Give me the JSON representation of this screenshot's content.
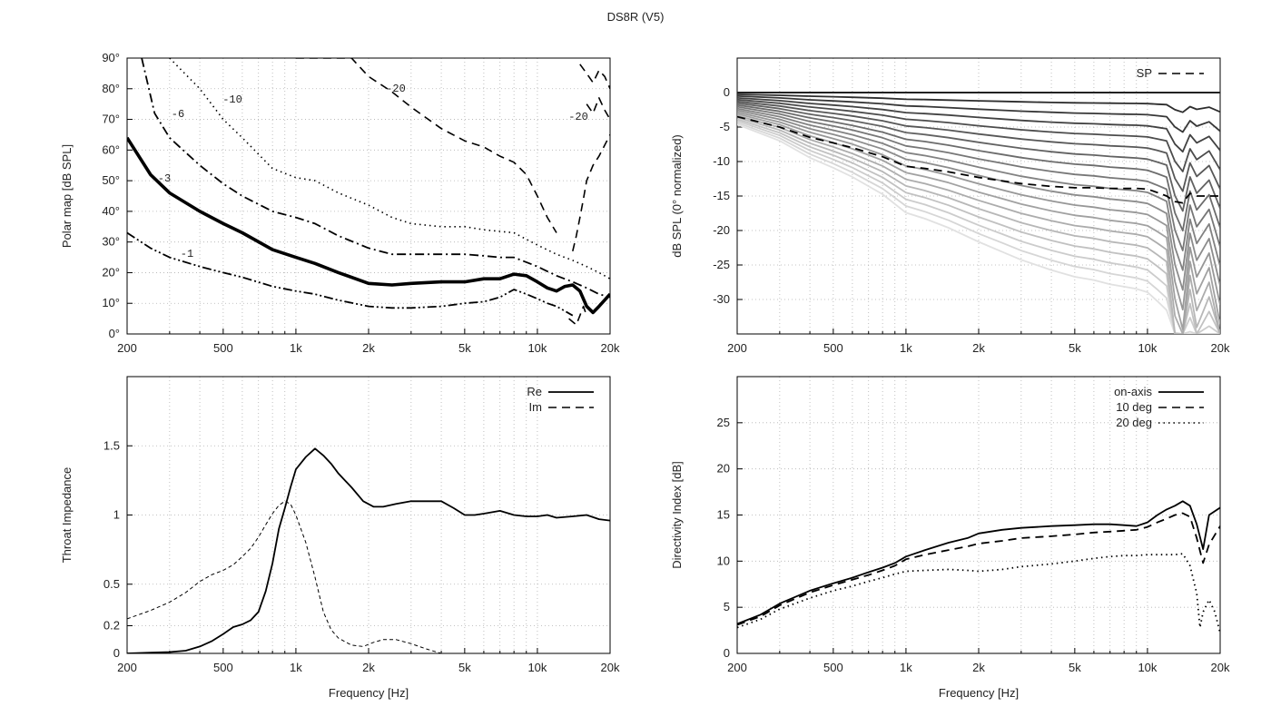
{
  "figure_title": "DS8R (V5)",
  "chart_data": [
    {
      "id": "polar",
      "type": "line",
      "title": "",
      "xlabel": "",
      "ylabel": "Polar map [dB SPL]",
      "xscale": "log",
      "xlim": [
        200,
        20000
      ],
      "ylim": [
        0,
        90
      ],
      "xticks": [
        [
          200,
          "200"
        ],
        [
          500,
          "500"
        ],
        [
          1000,
          "1k"
        ],
        [
          2000,
          "2k"
        ],
        [
          5000,
          "5k"
        ],
        [
          10000,
          "10k"
        ],
        [
          20000,
          "20k"
        ]
      ],
      "yticks": [
        [
          0,
          "0°"
        ],
        [
          10,
          "10°"
        ],
        [
          20,
          "20°"
        ],
        [
          30,
          "30°"
        ],
        [
          40,
          "40°"
        ],
        [
          50,
          "50°"
        ],
        [
          60,
          "60°"
        ],
        [
          70,
          "70°"
        ],
        [
          80,
          "80°"
        ],
        [
          90,
          "90°"
        ]
      ],
      "grid": true,
      "series": [
        {
          "name": "-1",
          "style": "dashdotdot",
          "x": [
            200,
            250,
            300,
            400,
            500,
            600,
            800,
            1000,
            1200,
            1500,
            2000,
            2500,
            3000,
            4000,
            5000,
            6000,
            7000,
            8000,
            9000,
            10000,
            11000,
            12000,
            13000,
            14000
          ],
          "y": [
            33,
            28,
            25,
            22,
            20,
            18.5,
            15.5,
            14,
            13,
            11,
            9,
            8.5,
            8.5,
            9,
            10,
            10.5,
            12,
            14.5,
            13,
            11.5,
            10,
            9,
            7.5,
            6
          ]
        },
        {
          "name": "-3",
          "style": "thick",
          "x": [
            200,
            250,
            300,
            400,
            500,
            600,
            800,
            1000,
            1200,
            1500,
            2000,
            2500,
            3000,
            4000,
            5000,
            6000,
            7000,
            8000,
            9000,
            10000,
            11000,
            12000,
            13000,
            14000,
            15000,
            16000,
            17000,
            18000,
            20000
          ],
          "y": [
            64,
            52,
            46,
            40,
            36,
            33,
            27.5,
            25,
            23,
            20,
            16.5,
            16,
            16.5,
            17,
            17,
            18,
            18,
            19.5,
            19,
            17,
            15,
            14,
            15.5,
            16,
            14,
            9,
            7,
            9,
            13
          ]
        },
        {
          "name": "-6",
          "style": "dashdot",
          "x": [
            230,
            260,
            300,
            400,
            500,
            600,
            800,
            1000,
            1200,
            1500,
            2000,
            2500,
            3000,
            4000,
            5000,
            6000,
            7000,
            8000,
            10000,
            12000,
            14000,
            16000,
            18000,
            20000
          ],
          "y": [
            90,
            72,
            64,
            55,
            49,
            45,
            40,
            38,
            36,
            32,
            28,
            26,
            26,
            26,
            26,
            25.5,
            25,
            25,
            22,
            19,
            17,
            15,
            13,
            12
          ]
        },
        {
          "name": "-10",
          "style": "dotted",
          "x": [
            300,
            400,
            500,
            600,
            800,
            1000,
            1200,
            1500,
            2000,
            2500,
            3000,
            4000,
            5000,
            6000,
            8000,
            10000,
            12000,
            14000,
            16000,
            18000,
            20000
          ],
          "y": [
            90,
            80,
            70,
            64,
            54,
            51,
            50,
            46,
            42,
            38,
            36,
            35,
            35,
            34,
            33,
            29,
            26,
            24,
            22,
            20,
            18
          ]
        },
        {
          "name": "-20",
          "style": "dashed",
          "x": [
            1000,
            1300,
            1700,
            2000,
            2500,
            3000,
            4000,
            5000,
            6000,
            7000,
            8000,
            9000,
            10000,
            11000,
            12000
          ],
          "y": [
            90,
            90,
            90,
            84,
            79,
            74,
            67,
            63,
            61,
            58,
            56,
            52,
            45,
            38,
            33
          ]
        }
      ],
      "annotations": [
        "-1",
        "-3",
        "-6",
        "-10",
        "-20",
        "-20"
      ]
    },
    {
      "id": "normalized",
      "type": "line",
      "ylabel": "dB SPL (0° normalized)",
      "xscale": "log",
      "xlim": [
        200,
        20000
      ],
      "ylim": [
        -35,
        5
      ],
      "xticks": [
        [
          200,
          "200"
        ],
        [
          500,
          "500"
        ],
        [
          1000,
          "1k"
        ],
        [
          2000,
          "2k"
        ],
        [
          5000,
          "5k"
        ],
        [
          10000,
          "10k"
        ],
        [
          20000,
          "20k"
        ]
      ],
      "yticks": [
        [
          0,
          "0"
        ],
        [
          -5,
          "-5"
        ],
        [
          -10,
          "-10"
        ],
        [
          -15,
          "-15"
        ],
        [
          -20,
          "-20"
        ],
        [
          -25,
          "-25"
        ],
        [
          -30,
          "-30"
        ]
      ],
      "grid": true,
      "legend": [
        {
          "label": "SP",
          "style": "dashed"
        }
      ],
      "legend_position": "top-right",
      "x": [
        200,
        300,
        400,
        500,
        600,
        800,
        1000,
        1200,
        1500,
        2000,
        2500,
        3000,
        4000,
        5000,
        6000,
        7000,
        8000,
        9000,
        10000,
        11000,
        12000,
        13000,
        14000,
        15000,
        16000,
        18000,
        20000
      ],
      "sp": [
        -3.5,
        -5,
        -6.5,
        -7.3,
        -8,
        -9.3,
        -10.7,
        -11,
        -11.5,
        -12.3,
        -12.8,
        -13.2,
        -13.6,
        -13.8,
        -13.8,
        -13.9,
        -13.9,
        -13.9,
        -14,
        -14.5,
        -15,
        -15.8,
        -16,
        -14.6,
        -15,
        -15,
        -15
      ],
      "angles_deg": [
        0,
        5,
        10,
        15,
        20,
        25,
        30,
        35,
        40,
        45,
        50,
        55,
        60,
        65,
        70,
        75,
        80,
        85,
        90
      ],
      "angle_line_colors": [
        "#222222",
        "#555555",
        "#6a6a6a",
        "#7f7f7f",
        "#949494",
        "#a9a9a9",
        "#bebebe",
        "#d3d3d3",
        "#e8e8e8"
      ]
    },
    {
      "id": "impedance",
      "type": "line",
      "xlabel": "Frequency [Hz]",
      "ylabel": "Throat Impedance",
      "xscale": "log",
      "xlim": [
        200,
        20000
      ],
      "ylim": [
        0,
        2
      ],
      "xticks": [
        [
          200,
          "200"
        ],
        [
          500,
          "500"
        ],
        [
          1000,
          "1k"
        ],
        [
          2000,
          "2k"
        ],
        [
          5000,
          "5k"
        ],
        [
          10000,
          "10k"
        ],
        [
          20000,
          "20k"
        ]
      ],
      "yticks": [
        [
          0,
          "0"
        ],
        [
          0.2,
          "0.2"
        ],
        [
          0.5,
          "0.5"
        ],
        [
          1,
          "1"
        ],
        [
          1.5,
          "1.5"
        ]
      ],
      "grid": true,
      "legend_position": "top-right",
      "series": [
        {
          "name": "Re",
          "style": "solid",
          "x": [
            200,
            250,
            300,
            350,
            400,
            450,
            500,
            550,
            600,
            650,
            700,
            750,
            800,
            850,
            900,
            950,
            1000,
            1100,
            1200,
            1300,
            1400,
            1500,
            1700,
            1900,
            2100,
            2300,
            2600,
            3000,
            3500,
            4000,
            4500,
            5000,
            5500,
            6000,
            7000,
            8000,
            9000,
            10000,
            11000,
            12000,
            14000,
            16000,
            18000,
            20000
          ],
          "y": [
            0,
            0.005,
            0.01,
            0.02,
            0.05,
            0.09,
            0.14,
            0.19,
            0.21,
            0.24,
            0.3,
            0.45,
            0.65,
            0.9,
            1.05,
            1.2,
            1.33,
            1.42,
            1.48,
            1.43,
            1.37,
            1.3,
            1.2,
            1.1,
            1.06,
            1.06,
            1.08,
            1.1,
            1.1,
            1.1,
            1.05,
            1.0,
            1.0,
            1.01,
            1.03,
            1.0,
            0.99,
            0.99,
            1.0,
            0.98,
            0.99,
            1.0,
            0.97,
            0.96
          ]
        },
        {
          "name": "Im",
          "style": "dashed",
          "x": [
            200,
            250,
            300,
            350,
            400,
            450,
            500,
            550,
            600,
            650,
            700,
            750,
            800,
            850,
            900,
            950,
            1000,
            1100,
            1200,
            1300,
            1400,
            1500,
            1700,
            1900,
            2100,
            2300,
            2600,
            3000,
            3500,
            4000
          ],
          "y": [
            0.25,
            0.31,
            0.37,
            0.44,
            0.52,
            0.57,
            0.6,
            0.64,
            0.7,
            0.76,
            0.84,
            0.93,
            1.01,
            1.07,
            1.1,
            1.08,
            1.0,
            0.8,
            0.55,
            0.3,
            0.17,
            0.11,
            0.06,
            0.05,
            0.08,
            0.1,
            0.1,
            0.07,
            0.03,
            0.0
          ]
        }
      ]
    },
    {
      "id": "directivity",
      "type": "line",
      "xlabel": "Frequency [Hz]",
      "ylabel": "Directivity Index [dB]",
      "xscale": "log",
      "xlim": [
        200,
        20000
      ],
      "ylim": [
        0,
        30
      ],
      "xticks": [
        [
          200,
          "200"
        ],
        [
          500,
          "500"
        ],
        [
          1000,
          "1k"
        ],
        [
          2000,
          "2k"
        ],
        [
          5000,
          "5k"
        ],
        [
          10000,
          "10k"
        ],
        [
          20000,
          "20k"
        ]
      ],
      "yticks": [
        [
          0,
          "0"
        ],
        [
          5,
          "5"
        ],
        [
          10,
          "10"
        ],
        [
          15,
          "15"
        ],
        [
          20,
          "20"
        ],
        [
          25,
          "25"
        ]
      ],
      "grid": true,
      "legend_position": "top-right",
      "series": [
        {
          "name": "on-axis",
          "style": "solid",
          "x": [
            200,
            250,
            300,
            400,
            500,
            600,
            700,
            800,
            900,
            1000,
            1200,
            1500,
            1800,
            2000,
            2500,
            3000,
            4000,
            5000,
            6000,
            7000,
            8000,
            9000,
            10000,
            11000,
            12000,
            13000,
            14000,
            15000,
            16000,
            17000,
            18000,
            20000
          ],
          "y": [
            3.2,
            4.2,
            5.4,
            6.8,
            7.6,
            8.2,
            8.8,
            9.3,
            9.8,
            10.5,
            11.2,
            12.0,
            12.5,
            13.0,
            13.4,
            13.6,
            13.8,
            13.9,
            14.0,
            14.0,
            13.9,
            13.8,
            14.2,
            15.0,
            15.6,
            16.0,
            16.5,
            16.0,
            14.0,
            11.3,
            15.0,
            15.8
          ]
        },
        {
          "name": "10 deg",
          "style": "dashed",
          "x": [
            200,
            250,
            300,
            400,
            500,
            600,
            700,
            800,
            900,
            1000,
            1200,
            1500,
            1800,
            2000,
            2500,
            3000,
            4000,
            5000,
            6000,
            7000,
            8000,
            9000,
            10000,
            11000,
            12000,
            13000,
            14000,
            15000,
            16000,
            17000,
            18000,
            20000
          ],
          "y": [
            3.1,
            4.0,
            5.2,
            6.6,
            7.4,
            8.0,
            8.5,
            9.0,
            9.5,
            10.2,
            10.7,
            11.2,
            11.6,
            11.9,
            12.2,
            12.5,
            12.7,
            12.9,
            13.1,
            13.2,
            13.3,
            13.4,
            13.7,
            14.2,
            14.6,
            15.0,
            15.2,
            14.8,
            12.5,
            9.8,
            11.8,
            13.8
          ]
        },
        {
          "name": "20 deg",
          "style": "dotted",
          "x": [
            200,
            250,
            300,
            400,
            500,
            600,
            700,
            800,
            900,
            1000,
            1200,
            1500,
            1800,
            2000,
            2500,
            3000,
            4000,
            5000,
            6000,
            7000,
            8000,
            9000,
            10000,
            11000,
            12000,
            13000,
            14000,
            15000,
            16000,
            16500,
            17000,
            18000,
            19000,
            20000
          ],
          "y": [
            2.8,
            3.7,
            4.8,
            6.0,
            6.8,
            7.3,
            7.8,
            8.2,
            8.6,
            8.9,
            9.0,
            9.1,
            9.0,
            8.9,
            9.1,
            9.4,
            9.7,
            10.0,
            10.3,
            10.5,
            10.6,
            10.6,
            10.7,
            10.7,
            10.7,
            10.7,
            10.8,
            9.5,
            6.5,
            2.8,
            4.5,
            5.8,
            4.5,
            2.2
          ]
        }
      ]
    }
  ]
}
